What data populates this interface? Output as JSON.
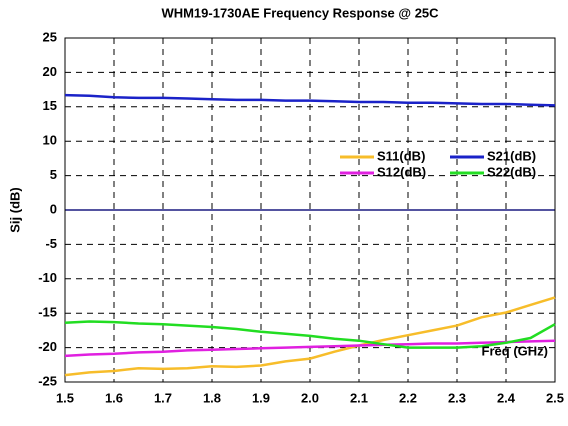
{
  "chart_data": {
    "type": "line",
    "title": "WHM19-1730AE Frequency Response @ 25C",
    "ylabel": "Sij (dB)",
    "xlabel": "Freq (GHz)",
    "x": [
      1.5,
      1.55,
      1.6,
      1.65,
      1.7,
      1.75,
      1.8,
      1.85,
      1.9,
      1.95,
      2.0,
      2.05,
      2.1,
      2.15,
      2.2,
      2.25,
      2.3,
      2.35,
      2.4,
      2.45,
      2.5
    ],
    "series": [
      {
        "name": "S11(dB)",
        "color": "#f7bd2a",
        "values": [
          -24,
          -23.6,
          -23.4,
          -23.0,
          -23.1,
          -23.0,
          -22.7,
          -22.8,
          -22.6,
          -22.0,
          -21.6,
          -20.6,
          -19.7,
          -18.9,
          -18.2,
          -17.5,
          -16.8,
          -15.6,
          -14.9,
          -13.8,
          -12.7
        ]
      },
      {
        "name": "S21(dB)",
        "color": "#1a22c8",
        "values": [
          16.7,
          16.6,
          16.4,
          16.3,
          16.3,
          16.2,
          16.1,
          16.0,
          16.0,
          15.9,
          15.9,
          15.8,
          15.7,
          15.7,
          15.6,
          15.6,
          15.5,
          15.4,
          15.4,
          15.3,
          15.2
        ]
      },
      {
        "name": "S12(dB)",
        "color": "#e020e0",
        "values": [
          -21.2,
          -21.0,
          -20.9,
          -20.7,
          -20.6,
          -20.4,
          -20.3,
          -20.2,
          -20.1,
          -20.0,
          -19.9,
          -19.8,
          -19.7,
          -19.6,
          -19.5,
          -19.4,
          -19.4,
          -19.3,
          -19.2,
          -19.1,
          -19.0
        ]
      },
      {
        "name": "S22(dB)",
        "color": "#22dd22",
        "values": [
          -16.4,
          -16.2,
          -16.3,
          -16.5,
          -16.6,
          -16.8,
          -17.0,
          -17.3,
          -17.7,
          -18.0,
          -18.3,
          -18.7,
          -19.0,
          -19.5,
          -20.0,
          -20.0,
          -20.0,
          -19.8,
          -19.3,
          -18.6,
          -16.6
        ]
      }
    ],
    "xlim": [
      1.5,
      2.5
    ],
    "ylim": [
      -25,
      25
    ],
    "xticks": [
      1.5,
      1.6,
      1.7,
      1.8,
      1.9,
      {
        "value": 2,
        "label": "2.0"
      },
      2.1,
      2.2,
      2.3,
      2.4,
      2.5
    ],
    "yticks": [
      -25,
      -20,
      -15,
      -10,
      -5,
      0,
      5,
      10,
      15,
      20,
      25
    ],
    "grid": true,
    "zero_line_color": "#1a1a80",
    "legend": "center right"
  }
}
